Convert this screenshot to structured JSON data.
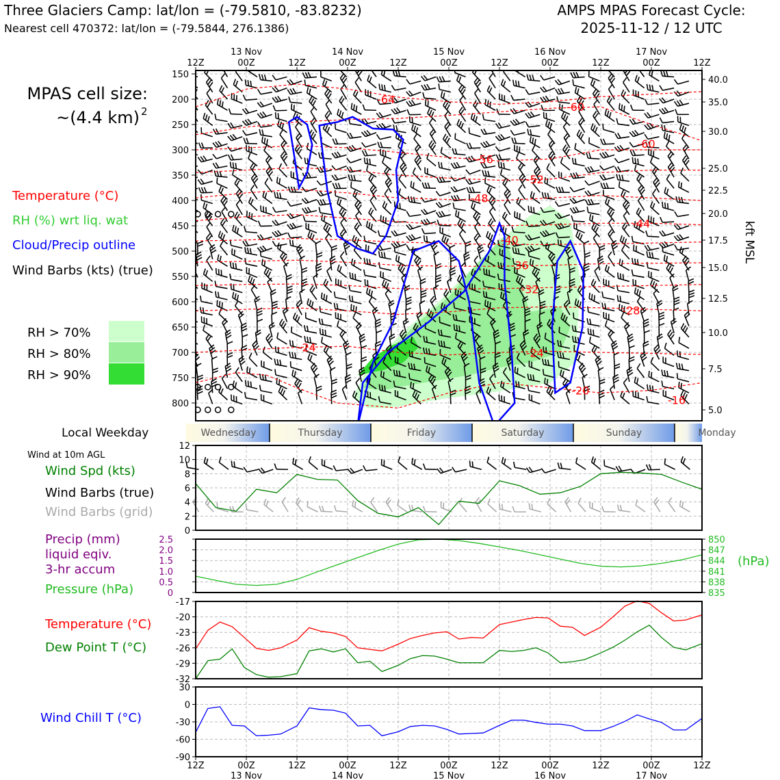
{
  "header": {
    "title": "Three Glaciers Camp: lat/lon = (-79.5810, -83.8232)",
    "subtitle": "Nearest cell 470372: lat/lon = (-79.5844, 276.1386)",
    "cycle_line1": "AMPS MPAS Forecast Cycle:",
    "cycle_line2": "2025-11-12 / 12 UTC"
  },
  "left_panel": {
    "cell_size_line1": "MPAS cell size:",
    "cell_size_line2": "~(4.4 km)",
    "cell_size_sup": "2",
    "legend_temperature": "Temperature (°C)",
    "legend_rh": "RH (%) wrt liq. wat",
    "legend_cloud": "Cloud/Precip outline",
    "legend_wind": "Wind Barbs (kts) (true)",
    "rh70": "RH > 70%",
    "rh80": "RH > 80%",
    "rh90": "RH > 90%",
    "local_weekday": "Local Weekday",
    "wind10m": "Wind at 10m AGL",
    "wind_spd": "Wind Spd (kts)",
    "wind_barbs_true": "Wind Barbs (true)",
    "wind_barbs_grid": "Wind Barbs (grid)",
    "precip_l1": "Precip (mm)",
    "precip_l2": "liquid eqiv.",
    "precip_l3": "3-hr accum",
    "pressure": "Pressure (hPa)",
    "hpa_unit": "(hPa)",
    "temperature": "Temperature (°C)",
    "dewpoint": "Dew Point T (°C)",
    "wind_chill": "Wind Chill T (°C)",
    "kft_msl": "kft MSL"
  },
  "colors": {
    "temperature": "#ff0000",
    "rh_text": "#33cc33",
    "cloud": "#0000ff",
    "rh70": "#ccffcc",
    "rh80": "#99ee99",
    "rh90": "#33dd33",
    "wind_spd": "#008000",
    "barb_grid": "#aaaaaa",
    "precip": "#800080",
    "pressure": "#22bb22",
    "dewpoint": "#008000",
    "windchill": "#0000ff"
  },
  "chart_data": [
    {
      "type": "time-height cross-section",
      "top_ticks": [
        "12Z",
        "00Z",
        "12Z",
        "00Z",
        "12Z",
        "00Z",
        "12Z",
        "00Z",
        "12Z",
        "00Z",
        "12Z"
      ],
      "top_dates": [
        "13 Nov",
        "14 Nov",
        "15 Nov",
        "16 Nov",
        "17 Nov"
      ],
      "pressure_ticks": [
        150,
        200,
        250,
        300,
        350,
        400,
        450,
        500,
        550,
        600,
        650,
        700,
        750,
        800
      ],
      "kft_ticks": [
        "40.0",
        "35.0",
        "30.0",
        "25.0",
        "22.5",
        "20.0",
        "17.5",
        "15.0",
        "12.5",
        "10.0",
        "7.5",
        "5.0"
      ],
      "temperature_labels": [
        {
          "text": "-64",
          "x": 1.88,
          "p": 200
        },
        {
          "text": "-60",
          "x": 3.75,
          "p": 215
        },
        {
          "text": "-60",
          "x": 4.45,
          "p": 288
        },
        {
          "text": "-56",
          "x": 2.85,
          "p": 318
        },
        {
          "text": "-52",
          "x": 3.35,
          "p": 358
        },
        {
          "text": "-48",
          "x": 2.8,
          "p": 395
        },
        {
          "text": "-44",
          "x": 4.4,
          "p": 445
        },
        {
          "text": "-40",
          "x": 3.1,
          "p": 478
        },
        {
          "text": "-36",
          "x": 3.2,
          "p": 528
        },
        {
          "text": "-32",
          "x": 3.3,
          "p": 575
        },
        {
          "text": "-28",
          "x": 4.3,
          "p": 617
        },
        {
          "text": "-24",
          "x": 1.1,
          "p": 690
        },
        {
          "text": "-24",
          "x": 3.35,
          "p": 701
        },
        {
          "text": "-20",
          "x": 3.8,
          "p": 775
        },
        {
          "text": "-16",
          "x": 4.75,
          "p": 794
        }
      ],
      "temperature_isotherms": [
        {
          "value": -64,
          "x": [
            0,
            0.5,
            1,
            1.5,
            2,
            2.5,
            3,
            3.5,
            4,
            4.5,
            5
          ],
          "p": [
            215,
            180,
            170,
            180,
            196,
            205,
            210,
            205,
            195,
            190,
            185
          ]
        },
        {
          "value": -60,
          "x": [
            0,
            0.5,
            1,
            1.5,
            2,
            2.5,
            3,
            3.5,
            4,
            4.5,
            5
          ],
          "p": [
            270,
            255,
            245,
            240,
            238,
            232,
            225,
            218,
            215,
            250,
            282
          ]
        },
        {
          "value": -56,
          "x": [
            0,
            0.5,
            1,
            1.5,
            2,
            2.5,
            3,
            3.5,
            4,
            4.5,
            5
          ],
          "p": [
            300,
            296,
            292,
            296,
            305,
            315,
            322,
            318,
            300,
            300,
            300
          ]
        },
        {
          "value": -52,
          "x": [
            0,
            0.5,
            1,
            1.5,
            2,
            2.5,
            3,
            3.5,
            4,
            4.5,
            5
          ],
          "p": [
            345,
            340,
            335,
            340,
            350,
            356,
            360,
            358,
            345,
            340,
            340
          ]
        },
        {
          "value": -48,
          "x": [
            0,
            0.5,
            1,
            1.5,
            2,
            2.5,
            3,
            3.5,
            4,
            4.5,
            5
          ],
          "p": [
            395,
            385,
            378,
            385,
            395,
            398,
            400,
            395,
            390,
            395,
            400
          ]
        },
        {
          "value": -44,
          "x": [
            0,
            0.5,
            1,
            1.5,
            2,
            2.5,
            3,
            3.5,
            4,
            4.5,
            5
          ],
          "p": [
            440,
            432,
            428,
            435,
            442,
            448,
            450,
            448,
            445,
            445,
            448
          ]
        },
        {
          "value": -40,
          "x": [
            0,
            0.5,
            1,
            1.5,
            2,
            2.5,
            3,
            3.5,
            4,
            4.5,
            5
          ],
          "p": [
            480,
            478,
            475,
            478,
            482,
            485,
            487,
            487,
            486,
            484,
            482
          ]
        },
        {
          "value": -36,
          "x": [
            0,
            0.5,
            1,
            1.5,
            2,
            2.5,
            3,
            3.5,
            4,
            4.5,
            5
          ],
          "p": [
            522,
            520,
            518,
            522,
            528,
            530,
            530,
            528,
            525,
            524,
            523
          ]
        },
        {
          "value": -32,
          "x": [
            0,
            0.5,
            1,
            1.5,
            2,
            2.5,
            3,
            3.5,
            4,
            4.5,
            5
          ],
          "p": [
            568,
            566,
            565,
            568,
            574,
            575,
            574,
            572,
            570,
            568,
            566
          ]
        },
        {
          "value": -28,
          "x": [
            0,
            0.5,
            1,
            1.5,
            2,
            2.5,
            3,
            3.5,
            4,
            4.5,
            5
          ],
          "p": [
            618,
            615,
            612,
            618,
            625,
            620,
            612,
            610,
            612,
            615,
            618
          ]
        },
        {
          "value": -24,
          "x": [
            0,
            0.5,
            1,
            1.5,
            2,
            2.5,
            3,
            3.5,
            4,
            4.5,
            5
          ],
          "p": [
            700,
            695,
            690,
            688,
            700,
            705,
            700,
            698,
            700,
            702,
            704
          ]
        },
        {
          "value": -20,
          "x": [
            0,
            0.4,
            0.7,
            1,
            1.4,
            2,
            2.5,
            3,
            3.5,
            4,
            4.5,
            5
          ],
          "p": [
            760,
            740,
            745,
            770,
            800,
            810,
            780,
            760,
            770,
            780,
            775,
            760
          ]
        }
      ],
      "rh_regions": [
        {
          "level": "70",
          "x": [
            1.55,
            1.7,
            1.9,
            2.1,
            2.4,
            2.7,
            3.0,
            3.3,
            3.5,
            3.7,
            3.8,
            3.75,
            3.5,
            3.2,
            2.9,
            2.5,
            2.2,
            1.9,
            1.7,
            1.55
          ],
          "p": [
            790,
            730,
            690,
            650,
            600,
            540,
            480,
            430,
            410,
            440,
            560,
            720,
            760,
            770,
            780,
            790,
            800,
            810,
            810,
            790
          ]
        },
        {
          "level": "80",
          "x": [
            1.65,
            1.8,
            2.0,
            2.2,
            2.5,
            2.8,
            3.05,
            3.3,
            3.6,
            3.7,
            3.6,
            3.3,
            3.0,
            2.7,
            2.4,
            2.1,
            1.85,
            1.65
          ],
          "p": [
            770,
            720,
            680,
            640,
            590,
            520,
            470,
            620,
            610,
            650,
            700,
            720,
            730,
            745,
            755,
            765,
            775,
            770
          ]
        },
        {
          "level": "90",
          "x": [
            1.6,
            1.75,
            1.95,
            2.15,
            2.2,
            2.05,
            1.85,
            1.6
          ],
          "p": [
            745,
            710,
            685,
            670,
            690,
            720,
            735,
            745
          ]
        }
      ],
      "cloud_outlines": [
        {
          "x": [
            0.92,
            1.0,
            1.1,
            1.15,
            1.1,
            1.02,
            0.98,
            0.92
          ],
          "p": [
            245,
            235,
            250,
            290,
            345,
            375,
            320,
            245
          ]
        },
        {
          "x": [
            1.22,
            1.4,
            1.55,
            1.75,
            1.95,
            2.05,
            1.98,
            2.0,
            1.88,
            1.75,
            1.6,
            1.4,
            1.3,
            1.22
          ],
          "p": [
            252,
            245,
            235,
            258,
            260,
            280,
            340,
            400,
            470,
            505,
            495,
            470,
            380,
            252
          ]
        },
        {
          "x": [
            1.6,
            1.65,
            1.9,
            2.3,
            2.65,
            2.9,
            3.0,
            3.05,
            3.05,
            3.12,
            3.15,
            2.95,
            2.8,
            2.7,
            2.6,
            2.4,
            2.15,
            1.95,
            1.75,
            1.6
          ],
          "p": [
            845,
            760,
            700,
            640,
            580,
            500,
            445,
            470,
            560,
            700,
            800,
            845,
            760,
            600,
            520,
            480,
            500,
            640,
            720,
            845
          ]
        },
        {
          "x": [
            3.55,
            3.7,
            3.82,
            3.83,
            3.7,
            3.57,
            3.52,
            3.55
          ],
          "p": [
            780,
            760,
            650,
            540,
            480,
            520,
            650,
            780
          ]
        }
      ],
      "calm_markers_p": [
        400,
        755,
        800
      ]
    },
    {
      "type": "line",
      "name": "weekday_strip",
      "days": [
        "Wednesday",
        "Thursday",
        "Friday",
        "Saturday",
        "Sunday",
        "Monday"
      ]
    },
    {
      "type": "line",
      "series_label": "Wind Spd (kts)",
      "ylim": [
        0,
        12
      ],
      "yticks": [
        0,
        2,
        4,
        6,
        8,
        10,
        12
      ],
      "x": [
        0,
        0.2,
        0.4,
        0.6,
        0.8,
        1.0,
        1.2,
        1.4,
        1.6,
        1.8,
        2.0,
        2.2,
        2.4,
        2.6,
        2.8,
        3.0,
        3.2,
        3.4,
        3.6,
        3.8,
        4.0,
        4.2,
        4.4,
        4.6,
        4.8,
        5.0
      ],
      "values": [
        6.6,
        3.2,
        2.7,
        5.8,
        5.3,
        7.9,
        7.2,
        7.1,
        4.2,
        2.4,
        1.9,
        3.2,
        0.8,
        4.1,
        3.8,
        7.0,
        6.3,
        5.1,
        5.3,
        6.2,
        8.0,
        8.2,
        8.1,
        7.9,
        6.8,
        5.8
      ]
    },
    {
      "type": "line",
      "series_label": "Pressure (hPa)",
      "precip_ylim": [
        0,
        2.5
      ],
      "precip_yticks": [
        "0",
        "0.5",
        "1.0",
        "1.5",
        "2.0",
        "2.5"
      ],
      "pressure_ylim": [
        835,
        850
      ],
      "pressure_yticks": [
        "850",
        "847",
        "844",
        "841",
        "838",
        "835"
      ],
      "x": [
        0,
        0.2,
        0.4,
        0.6,
        0.8,
        1.0,
        1.2,
        1.4,
        1.6,
        1.8,
        2.0,
        2.2,
        2.4,
        2.6,
        2.8,
        3.0,
        3.2,
        3.4,
        3.6,
        3.8,
        4.0,
        4.2,
        4.4,
        4.6,
        4.8,
        5.0
      ],
      "values": [
        839.6,
        838.4,
        837.3,
        837.0,
        837.3,
        838.7,
        840.8,
        842.8,
        844.8,
        846.8,
        848.6,
        849.8,
        850.0,
        849.6,
        848.8,
        847.8,
        846.8,
        845.6,
        844.4,
        843.2,
        842.4,
        842.2,
        842.5,
        843.2,
        844.2,
        845.6
      ]
    },
    {
      "type": "line",
      "ylim": [
        -32,
        -17
      ],
      "yticks": [
        -32,
        -29,
        -26,
        -23,
        -20,
        -17
      ],
      "x": [
        0,
        0.12,
        0.24,
        0.36,
        0.48,
        0.6,
        0.72,
        0.84,
        1.0,
        1.12,
        1.24,
        1.36,
        1.48,
        1.6,
        1.72,
        1.84,
        2.0,
        2.12,
        2.24,
        2.36,
        2.48,
        2.6,
        2.72,
        2.84,
        3.0,
        3.12,
        3.24,
        3.36,
        3.48,
        3.6,
        3.72,
        3.84,
        4.0,
        4.12,
        4.24,
        4.36,
        4.48,
        4.6,
        4.72,
        4.84,
        5.0
      ],
      "series": [
        {
          "name": "Temperature (°C)",
          "values": [
            -26.2,
            -22.6,
            -21.0,
            -21.9,
            -24.0,
            -26.1,
            -26.5,
            -26.0,
            -24.5,
            -22.1,
            -22.8,
            -23.1,
            -23.8,
            -26.0,
            -26.3,
            -26.6,
            -25.3,
            -24.2,
            -23.6,
            -23.1,
            -22.9,
            -24.3,
            -24.0,
            -24.1,
            -21.5,
            -21.0,
            -20.5,
            -20.1,
            -20.2,
            -21.8,
            -22.0,
            -23.6,
            -22.0,
            -20.0,
            -17.9,
            -16.9,
            -17.4,
            -19.2,
            -20.8,
            -20.6,
            -19.6
          ]
        },
        {
          "name": "Dew Point T (°C)",
          "values": [
            -32.0,
            -28.5,
            -28.2,
            -26.2,
            -29.8,
            -31.2,
            -31.7,
            -31.6,
            -31.0,
            -26.6,
            -26.2,
            -26.8,
            -26.2,
            -28.9,
            -28.6,
            -30.6,
            -29.4,
            -28.1,
            -27.5,
            -27.6,
            -28.2,
            -28.9,
            -28.9,
            -28.9,
            -26.5,
            -26.7,
            -26.5,
            -26.0,
            -27.0,
            -28.9,
            -28.7,
            -28.3,
            -27.0,
            -25.9,
            -24.5,
            -22.9,
            -21.6,
            -24.0,
            -25.9,
            -26.4,
            -25.2
          ]
        }
      ]
    },
    {
      "type": "line",
      "series_label": "Wind Chill T (°C)",
      "ylim": [
        -90,
        30
      ],
      "yticks": [
        -90,
        -60,
        -30,
        0,
        30
      ],
      "x": [
        0,
        0.12,
        0.24,
        0.36,
        0.48,
        0.6,
        0.72,
        0.84,
        1.0,
        1.12,
        1.24,
        1.36,
        1.48,
        1.6,
        1.72,
        1.84,
        2.0,
        2.12,
        2.24,
        2.36,
        2.48,
        2.6,
        2.72,
        2.84,
        3.0,
        3.12,
        3.24,
        3.36,
        3.48,
        3.6,
        3.72,
        3.84,
        4.0,
        4.12,
        4.24,
        4.36,
        4.48,
        4.6,
        4.72,
        4.84,
        5.0
      ],
      "values": [
        -48,
        -7,
        -4,
        -36,
        -37,
        -54,
        -53,
        -51,
        -37,
        -6,
        -9,
        -10,
        -15,
        -37,
        -36,
        -54,
        -47,
        -38,
        -36,
        -37,
        -43,
        -51,
        -50,
        -49,
        -36,
        -27,
        -27,
        -31,
        -34,
        -34,
        -37,
        -45,
        -45,
        -38,
        -29,
        -18,
        -25,
        -31,
        -44,
        -44,
        -24
      ]
    },
    {
      "type": "line",
      "name": "bottom_axis",
      "ticks": [
        "12Z",
        "00Z",
        "12Z",
        "00Z",
        "12Z",
        "00Z",
        "12Z",
        "00Z",
        "12Z",
        "00Z",
        "12Z"
      ],
      "dates": [
        "13 Nov",
        "14 Nov",
        "15 Nov",
        "16 Nov",
        "17 Nov"
      ]
    }
  ]
}
